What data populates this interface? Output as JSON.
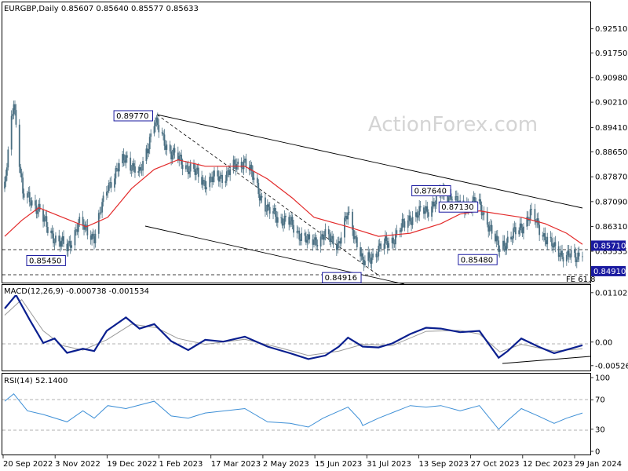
{
  "chart_data": {
    "type": "candlestick",
    "watermark": "ActionForex.com",
    "colors": {
      "candles": "#4a6f82",
      "ma": "#e32b2b",
      "macd": "#0a1f8f",
      "signal": "#9a9a9a",
      "rsi": "#3d8fd6",
      "price_marker_bg": "#1a1aa0",
      "trendline": "#000000"
    },
    "price_panel": {
      "header": "EURGBP,Daily  0.85607 0.85640 0.85577 0.85633",
      "ylim": [
        0.846,
        0.9297
      ],
      "ticks": [
        "0.92510",
        "0.91750",
        "0.90980",
        "0.90210",
        "0.89410",
        "0.88650",
        "0.87870",
        "0.87090",
        "0.86310",
        "0.85710",
        "0.85535",
        "0.84910"
      ],
      "current_price": "0.85710",
      "support_level": "0.84910",
      "fe_note": "FE 61.8",
      "annotations": [
        {
          "text": "0.89770",
          "date": "2023-01-30",
          "price": 0.8977
        },
        {
          "text": "0.85450",
          "date": "2022-11-14",
          "price": 0.8545
        },
        {
          "text": "0.84916",
          "date": "2023-08-02",
          "price": 0.84916
        },
        {
          "text": "0.87640",
          "date": "2023-10-20",
          "price": 0.8764
        },
        {
          "text": "0.87130",
          "date": "2023-11-13",
          "price": 0.8713
        },
        {
          "text": "0.85480",
          "date": "2023-11-30",
          "price": 0.8548
        }
      ]
    },
    "macd_panel": {
      "header": "MACD(12,26,9) -0.000738 -0.001534",
      "ylim": [
        -0.006,
        0.0117
      ],
      "ticks": [
        "0.011027",
        "0.00",
        "-0.005267"
      ]
    },
    "rsi_panel": {
      "header": "RSI(14) 52.1400",
      "ylim": [
        0,
        100
      ],
      "ticks": [
        "100",
        "70",
        "30",
        "0"
      ]
    },
    "x_axis": {
      "ticks": [
        "20 Sep 2022",
        "3 Nov 2022",
        "19 Dec 2022",
        "1 Feb 2023",
        "17 Mar 2023",
        "2 May 2023",
        "15 Jun 2023",
        "31 Jul 2023",
        "13 Sep 2023",
        "27 Oct 2023",
        "12 Dec 2023",
        "29 Jan 2024"
      ],
      "range": [
        "2022-09-20",
        "2024-02-12"
      ]
    },
    "price_waypoints": [
      [
        "2022-09-20",
        0.875
      ],
      [
        "2022-09-28",
        0.903
      ],
      [
        "2022-10-06",
        0.873
      ],
      [
        "2022-10-20",
        0.869
      ],
      [
        "2022-10-28",
        0.862
      ],
      [
        "2022-11-14",
        0.856
      ],
      [
        "2022-11-24",
        0.864
      ],
      [
        "2022-12-08",
        0.86
      ],
      [
        "2022-12-20",
        0.876
      ],
      [
        "2023-01-05",
        0.885
      ],
      [
        "2023-01-17",
        0.879
      ],
      [
        "2023-01-30",
        0.896
      ],
      [
        "2023-02-14",
        0.886
      ],
      [
        "2023-02-28",
        0.882
      ],
      [
        "2023-03-16",
        0.877
      ],
      [
        "2023-04-01",
        0.879
      ],
      [
        "2023-04-20",
        0.884
      ],
      [
        "2023-05-10",
        0.868
      ],
      [
        "2023-05-30",
        0.864
      ],
      [
        "2023-06-15",
        0.858
      ],
      [
        "2023-06-28",
        0.86
      ],
      [
        "2023-07-12",
        0.858
      ],
      [
        "2023-07-20",
        0.867
      ],
      [
        "2023-07-31",
        0.855
      ],
      [
        "2023-08-02",
        0.851
      ],
      [
        "2023-08-16",
        0.856
      ],
      [
        "2023-08-28",
        0.859
      ],
      [
        "2023-09-13",
        0.866
      ],
      [
        "2023-09-27",
        0.868
      ],
      [
        "2023-10-10",
        0.873
      ],
      [
        "2023-10-20",
        0.873
      ],
      [
        "2023-10-27",
        0.869
      ],
      [
        "2023-11-03",
        0.87
      ],
      [
        "2023-11-10",
        0.871
      ],
      [
        "2023-11-20",
        0.865
      ],
      [
        "2023-11-30",
        0.856
      ],
      [
        "2023-12-08",
        0.859
      ],
      [
        "2023-12-18",
        0.862
      ],
      [
        "2023-12-28",
        0.867
      ],
      [
        "2024-01-08",
        0.861
      ],
      [
        "2024-01-18",
        0.856
      ],
      [
        "2024-01-29",
        0.854
      ],
      [
        "2024-02-06",
        0.853
      ],
      [
        "2024-02-12",
        0.8563
      ]
    ],
    "ma_waypoints": [
      [
        "2022-09-20",
        0.86
      ],
      [
        "2022-10-05",
        0.865
      ],
      [
        "2022-10-20",
        0.869
      ],
      [
        "2022-11-10",
        0.866
      ],
      [
        "2022-12-01",
        0.863
      ],
      [
        "2022-12-20",
        0.866
      ],
      [
        "2023-01-10",
        0.875
      ],
      [
        "2023-01-30",
        0.881
      ],
      [
        "2023-02-20",
        0.884
      ],
      [
        "2023-03-16",
        0.882
      ],
      [
        "2023-04-20",
        0.882
      ],
      [
        "2023-05-10",
        0.878
      ],
      [
        "2023-06-01",
        0.872
      ],
      [
        "2023-06-20",
        0.866
      ],
      [
        "2023-07-20",
        0.863
      ],
      [
        "2023-08-16",
        0.86
      ],
      [
        "2023-09-13",
        0.861
      ],
      [
        "2023-10-10",
        0.864
      ],
      [
        "2023-10-27",
        0.867
      ],
      [
        "2023-11-13",
        0.868
      ],
      [
        "2023-12-01",
        0.867
      ],
      [
        "2023-12-20",
        0.866
      ],
      [
        "2024-01-10",
        0.864
      ],
      [
        "2024-01-29",
        0.861
      ],
      [
        "2024-02-12",
        0.8575
      ]
    ],
    "macd_waypoints": [
      [
        "2022-09-20",
        0.0075
      ],
      [
        "2022-09-30",
        0.0105
      ],
      [
        "2022-10-12",
        0.005
      ],
      [
        "2022-10-24",
        -0.0002
      ],
      [
        "2022-11-03",
        0.0008
      ],
      [
        "2022-11-14",
        -0.0024
      ],
      [
        "2022-11-28",
        -0.0015
      ],
      [
        "2022-12-08",
        -0.002
      ],
      [
        "2022-12-19",
        0.0025
      ],
      [
        "2023-01-05",
        0.0055
      ],
      [
        "2023-01-17",
        0.003
      ],
      [
        "2023-01-30",
        0.004
      ],
      [
        "2023-02-14",
        0.0002
      ],
      [
        "2023-03-01",
        -0.0018
      ],
      [
        "2023-03-16",
        0.0005
      ],
      [
        "2023-04-01",
        0.0001
      ],
      [
        "2023-04-20",
        0.0012
      ],
      [
        "2023-05-10",
        -0.001
      ],
      [
        "2023-05-30",
        -0.0025
      ],
      [
        "2023-06-15",
        -0.0038
      ],
      [
        "2023-06-30",
        -0.003
      ],
      [
        "2023-07-12",
        -0.001
      ],
      [
        "2023-07-20",
        0.001
      ],
      [
        "2023-08-02",
        -0.001
      ],
      [
        "2023-08-16",
        -0.0012
      ],
      [
        "2023-08-28",
        -0.0003
      ],
      [
        "2023-09-13",
        0.0018
      ],
      [
        "2023-09-27",
        0.0032
      ],
      [
        "2023-10-10",
        0.003
      ],
      [
        "2023-10-27",
        0.0022
      ],
      [
        "2023-11-13",
        0.0025
      ],
      [
        "2023-11-30",
        -0.0035
      ],
      [
        "2023-12-08",
        -0.002
      ],
      [
        "2023-12-20",
        0.0008
      ],
      [
        "2024-01-04",
        -0.001
      ],
      [
        "2024-01-18",
        -0.0025
      ],
      [
        "2024-02-12",
        -0.0007
      ]
    ],
    "signal_waypoints": [
      [
        "2022-09-20",
        0.006
      ],
      [
        "2022-10-05",
        0.0095
      ],
      [
        "2022-10-24",
        0.0025
      ],
      [
        "2022-11-10",
        -0.0008
      ],
      [
        "2022-11-28",
        -0.0018
      ],
      [
        "2022-12-19",
        0.0005
      ],
      [
        "2023-01-10",
        0.004
      ],
      [
        "2023-02-01",
        0.0032
      ],
      [
        "2023-02-20",
        0.0008
      ],
      [
        "2023-03-16",
        -0.0005
      ],
      [
        "2023-04-20",
        0.0006
      ],
      [
        "2023-05-20",
        -0.0012
      ],
      [
        "2023-06-15",
        -0.003
      ],
      [
        "2023-07-12",
        -0.002
      ],
      [
        "2023-08-02",
        -0.0005
      ],
      [
        "2023-08-28",
        -0.0008
      ],
      [
        "2023-09-27",
        0.0024
      ],
      [
        "2023-10-27",
        0.0026
      ],
      [
        "2023-11-13",
        0.0018
      ],
      [
        "2023-12-01",
        -0.0022
      ],
      [
        "2023-12-20",
        -0.0005
      ],
      [
        "2024-01-18",
        -0.002
      ],
      [
        "2024-02-12",
        -0.0015
      ]
    ],
    "rsi_waypoints": [
      [
        "2022-09-20",
        68
      ],
      [
        "2022-09-28",
        78
      ],
      [
        "2022-10-10",
        55
      ],
      [
        "2022-10-24",
        50
      ],
      [
        "2022-11-14",
        40
      ],
      [
        "2022-11-28",
        55
      ],
      [
        "2022-12-08",
        45
      ],
      [
        "2022-12-20",
        62
      ],
      [
        "2023-01-05",
        58
      ],
      [
        "2023-01-30",
        68
      ],
      [
        "2023-02-14",
        48
      ],
      [
        "2023-03-01",
        45
      ],
      [
        "2023-03-16",
        52
      ],
      [
        "2023-04-20",
        58
      ],
      [
        "2023-05-10",
        40
      ],
      [
        "2023-05-30",
        38
      ],
      [
        "2023-06-15",
        33
      ],
      [
        "2023-06-28",
        45
      ],
      [
        "2023-07-20",
        60
      ],
      [
        "2023-07-31",
        42
      ],
      [
        "2023-08-02",
        35
      ],
      [
        "2023-08-16",
        45
      ],
      [
        "2023-09-13",
        62
      ],
      [
        "2023-09-27",
        60
      ],
      [
        "2023-10-10",
        62
      ],
      [
        "2023-10-27",
        55
      ],
      [
        "2023-11-13",
        62
      ],
      [
        "2023-11-30",
        30
      ],
      [
        "2023-12-08",
        42
      ],
      [
        "2023-12-20",
        58
      ],
      [
        "2024-01-04",
        48
      ],
      [
        "2024-01-18",
        38
      ],
      [
        "2024-01-29",
        45
      ],
      [
        "2024-02-12",
        52
      ]
    ]
  }
}
